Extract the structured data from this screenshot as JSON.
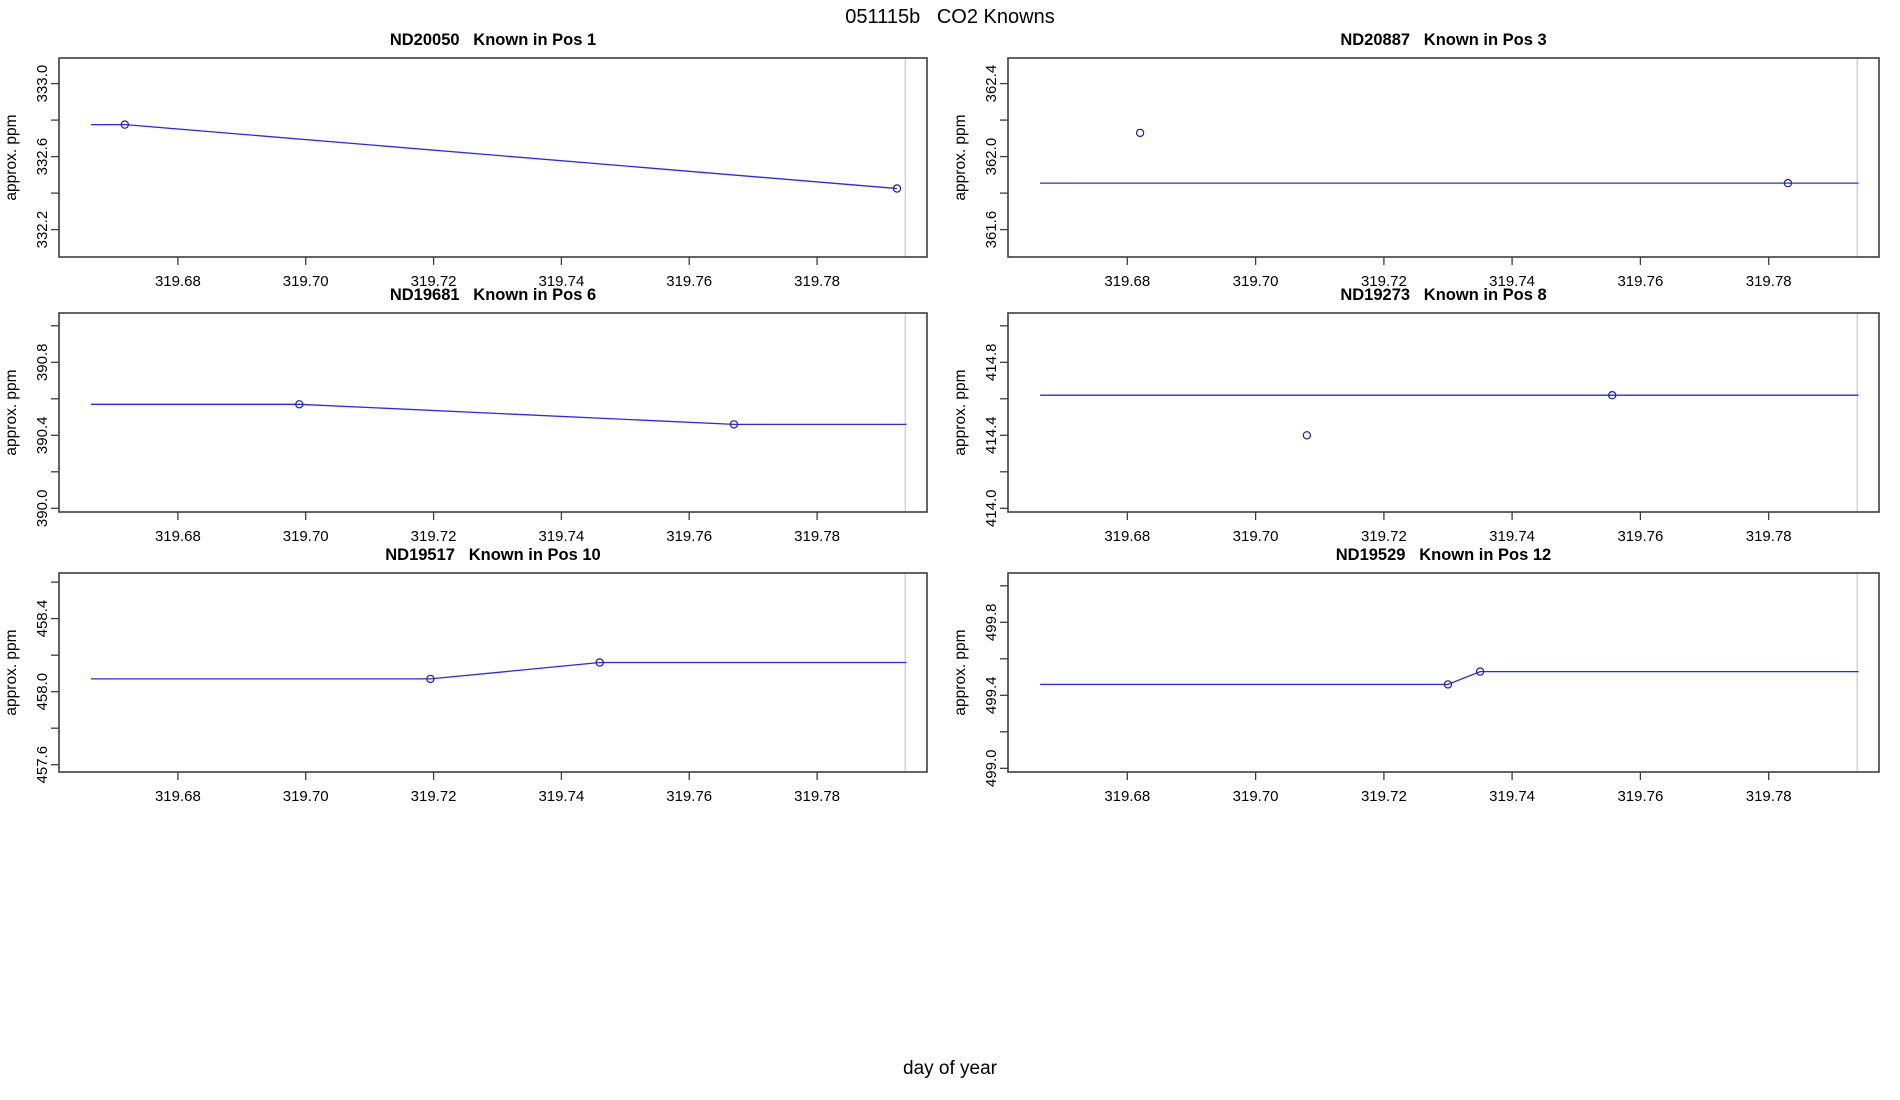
{
  "figure": {
    "title": "051115b   CO2 Knowns",
    "xlabel": "day of year"
  },
  "colors": {
    "line": "#2a2ae6",
    "point": "#1c1cb4",
    "box": "#3d3d3d",
    "tick": "#3d3d3d",
    "vline": "#c9c9c9",
    "text": "#000000",
    "background": "#ffffff"
  },
  "axes": {
    "xlim": [
      319.6614,
      319.7972
    ],
    "xticks": [
      319.68,
      319.7,
      319.72,
      319.74,
      319.76,
      319.78
    ],
    "vline_x": 319.7938,
    "x_tick_decimals": 2,
    "y_tick_decimals": 1
  },
  "chart_data": [
    {
      "type": "line",
      "station": "ND20050",
      "position_label": "Pos 1",
      "title": "ND20050   Known in Pos 1",
      "ylabel": "approx. ppm",
      "ylim": [
        332.05,
        333.14
      ],
      "yticks_labeled": [
        332.2,
        332.6,
        333.0
      ],
      "yticks_minor": [
        332.4,
        332.8
      ],
      "line_xy": [
        [
          319.6664,
          332.775
        ],
        [
          319.6717,
          332.775
        ],
        [
          319.7925,
          332.425
        ]
      ],
      "points_xy": [
        [
          319.6717,
          332.775
        ],
        [
          319.7925,
          332.425
        ]
      ]
    },
    {
      "type": "line",
      "station": "ND20887",
      "position_label": "Pos 3",
      "title": "ND20887   Known in Pos 3",
      "ylabel": "approx. ppm",
      "ylim": [
        361.45,
        362.54
      ],
      "yticks_labeled": [
        361.6,
        362.0,
        362.4
      ],
      "yticks_minor": [
        361.8,
        362.2
      ],
      "line_xy": [
        [
          319.6664,
          361.855
        ],
        [
          319.794,
          361.855
        ]
      ],
      "points_xy": [
        [
          319.682,
          362.13
        ],
        [
          319.783,
          361.855
        ]
      ]
    },
    {
      "type": "line",
      "station": "ND19681",
      "position_label": "Pos 6",
      "title": "ND19681   Known in Pos 6",
      "ylabel": "approx. ppm",
      "ylim": [
        389.98,
        391.07
      ],
      "yticks_labeled": [
        390.0,
        390.4,
        390.8
      ],
      "yticks_minor": [
        390.2,
        390.6,
        391.0
      ],
      "line_xy": [
        [
          319.6664,
          390.57
        ],
        [
          319.699,
          390.57
        ],
        [
          319.767,
          390.46
        ],
        [
          319.794,
          390.46
        ]
      ],
      "points_xy": [
        [
          319.699,
          390.57
        ],
        [
          319.767,
          390.46
        ]
      ]
    },
    {
      "type": "line",
      "station": "ND19273",
      "position_label": "Pos 8",
      "title": "ND19273   Known in Pos 8",
      "ylabel": "approx. ppm",
      "ylim": [
        413.98,
        415.07
      ],
      "yticks_labeled": [
        414.0,
        414.4,
        414.8
      ],
      "yticks_minor": [
        414.2,
        414.6,
        415.0
      ],
      "line_xy": [
        [
          319.6664,
          414.62
        ],
        [
          319.794,
          414.62
        ]
      ],
      "points_xy": [
        [
          319.708,
          414.4
        ],
        [
          319.7556,
          414.62
        ]
      ]
    },
    {
      "type": "line",
      "station": "ND19517",
      "position_label": "Pos 10",
      "title": "ND19517   Known in Pos 10",
      "ylabel": "approx. ppm",
      "ylim": [
        457.56,
        458.65
      ],
      "yticks_labeled": [
        457.6,
        458.0,
        458.4
      ],
      "yticks_minor": [
        457.8,
        458.2,
        458.6
      ],
      "line_xy": [
        [
          319.6664,
          458.07
        ],
        [
          319.7195,
          458.07
        ],
        [
          319.746,
          458.16
        ],
        [
          319.794,
          458.16
        ]
      ],
      "points_xy": [
        [
          319.7195,
          458.07
        ],
        [
          319.746,
          458.16
        ]
      ]
    },
    {
      "type": "line",
      "station": "ND19529",
      "position_label": "Pos 12",
      "title": "ND19529   Known in Pos 12",
      "ylabel": "approx. ppm",
      "ylim": [
        498.98,
        500.07
      ],
      "yticks_labeled": [
        499.0,
        499.4,
        499.8
      ],
      "yticks_minor": [
        499.2,
        499.6,
        500.0
      ],
      "line_xy": [
        [
          319.6664,
          499.46
        ],
        [
          319.73,
          499.46
        ],
        [
          319.735,
          499.53
        ],
        [
          319.794,
          499.53
        ]
      ],
      "points_xy": [
        [
          319.73,
          499.46
        ],
        [
          319.735,
          499.53
        ]
      ]
    }
  ]
}
